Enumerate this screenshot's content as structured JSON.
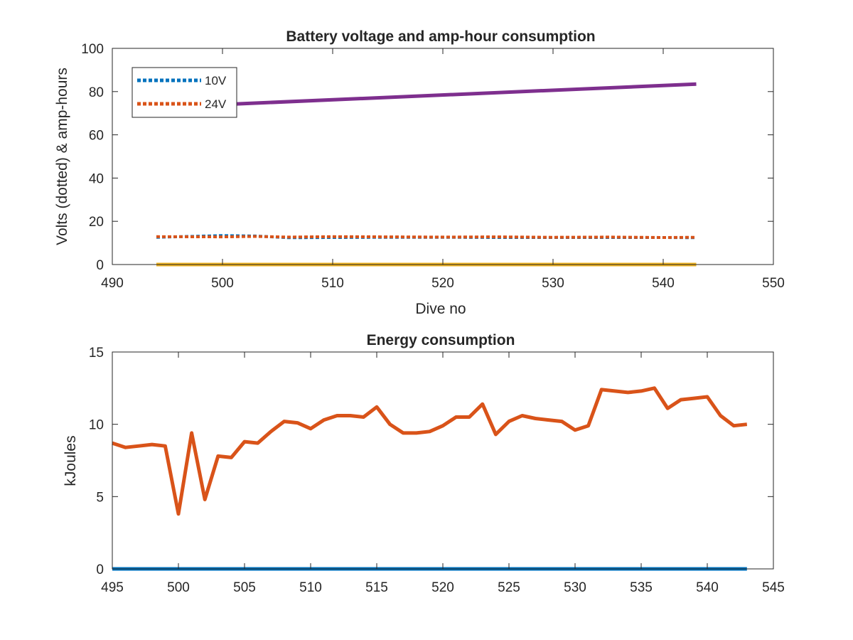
{
  "chart_data": [
    {
      "type": "line",
      "title": "Battery voltage and amp-hour consumption",
      "xlabel": "Dive no",
      "ylabel": "Volts (dotted) & amp-hours",
      "xlim": [
        490,
        550
      ],
      "ylim": [
        0,
        100
      ],
      "xticks": [
        "490",
        "500",
        "510",
        "520",
        "530",
        "540",
        "550"
      ],
      "yticks": [
        "0",
        "20",
        "40",
        "60",
        "80",
        "100"
      ],
      "grid": false,
      "legend_position": "top-left",
      "colors": {
        "10V": "#0072BD",
        "24V": "#D95319",
        "amp_hours_a": "#7E2F8E",
        "amp_hours_b": "#EDB120"
      },
      "series": [
        {
          "name": "10V",
          "style": "dotted",
          "color": "#0072BD",
          "x": [
            494,
            500,
            503,
            506,
            510,
            515,
            520,
            525,
            530,
            535,
            540,
            543
          ],
          "y": [
            12.6,
            13.4,
            13.2,
            12.4,
            12.5,
            12.6,
            12.6,
            12.5,
            12.5,
            12.5,
            12.5,
            12.4
          ]
        },
        {
          "name": "24V",
          "style": "dotted",
          "color": "#D95319",
          "x": [
            494,
            500,
            503,
            506,
            510,
            515,
            520,
            525,
            530,
            535,
            540,
            543
          ],
          "y": [
            12.9,
            12.8,
            13.0,
            12.7,
            12.9,
            12.8,
            12.7,
            12.8,
            12.6,
            12.7,
            12.5,
            12.6
          ]
        },
        {
          "style": "solid",
          "color": "#7E2F8E",
          "x": [
            500,
            543
          ],
          "y": [
            74,
            83.5
          ]
        },
        {
          "style": "solid",
          "color": "#EDB120",
          "x": [
            494,
            543
          ],
          "y": [
            0,
            0
          ]
        }
      ]
    },
    {
      "type": "line",
      "title": "Energy consumption",
      "xlabel": "",
      "ylabel": "kJoules",
      "xlim": [
        495,
        545
      ],
      "ylim": [
        0,
        15
      ],
      "xticks": [
        "495",
        "500",
        "505",
        "510",
        "515",
        "520",
        "525",
        "530",
        "535",
        "540",
        "545"
      ],
      "yticks": [
        "0",
        "5",
        "10",
        "15"
      ],
      "grid": false,
      "series": [
        {
          "color": "#D95319",
          "x": [
            495,
            496,
            497,
            498,
            499,
            500,
            501,
            502,
            503,
            504,
            505,
            506,
            507,
            508,
            509,
            510,
            511,
            512,
            513,
            514,
            515,
            516,
            517,
            518,
            519,
            520,
            521,
            522,
            523,
            524,
            525,
            526,
            527,
            528,
            529,
            530,
            531,
            532,
            533,
            534,
            535,
            536,
            537,
            538,
            539,
            540,
            541,
            542,
            543
          ],
          "y": [
            8.7,
            8.4,
            8.5,
            8.6,
            8.5,
            3.8,
            9.4,
            4.8,
            7.8,
            7.7,
            8.8,
            8.7,
            9.5,
            10.2,
            10.1,
            9.7,
            10.3,
            10.6,
            10.6,
            10.5,
            11.2,
            10.0,
            9.4,
            9.4,
            9.5,
            9.9,
            10.5,
            10.5,
            11.4,
            9.3,
            10.2,
            10.6,
            10.4,
            10.3,
            10.2,
            9.6,
            9.9,
            12.4,
            12.3,
            12.2,
            12.3,
            12.5,
            11.1,
            11.7,
            11.8,
            11.9,
            10.6,
            9.9,
            10.0
          ]
        },
        {
          "color": "#0072BD",
          "x": [
            495,
            543
          ],
          "y": [
            0,
            0
          ]
        }
      ]
    }
  ]
}
